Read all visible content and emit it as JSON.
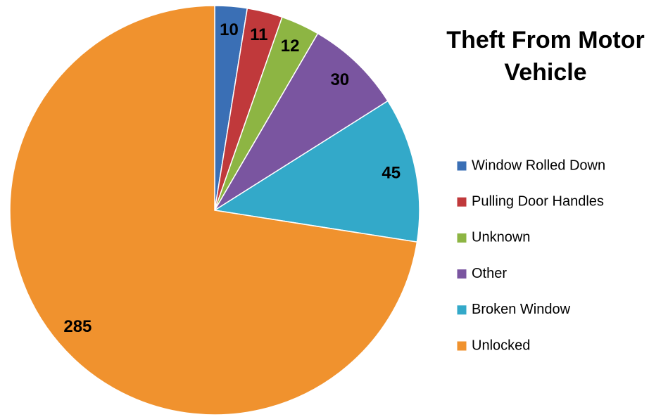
{
  "chart_data": {
    "type": "pie",
    "title": "Theft From Motor Vehicle",
    "categories": [
      "Window Rolled Down",
      "Pulling Door Handles",
      "Unknown",
      "Other",
      "Broken Window",
      "Unlocked"
    ],
    "values": [
      10,
      11,
      12,
      30,
      45,
      285
    ],
    "colors": [
      "#3a6fb5",
      "#c0393b",
      "#8db543",
      "#7a55a0",
      "#33a9c9",
      "#f0922e"
    ],
    "legend": "right"
  }
}
